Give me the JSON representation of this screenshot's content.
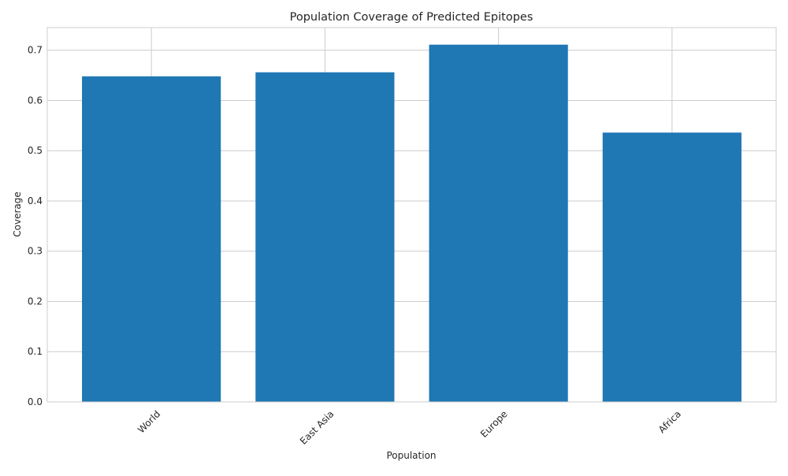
{
  "chart_data": {
    "type": "bar",
    "title": "Population Coverage of Predicted Epitopes",
    "xlabel": "Population",
    "ylabel": "Coverage",
    "categories": [
      "World",
      "East Asia",
      "Europe",
      "Africa"
    ],
    "values": [
      0.648,
      0.656,
      0.711,
      0.536
    ],
    "ylim": [
      0,
      0.745
    ],
    "yticks": [
      "0.0",
      "0.1",
      "0.2",
      "0.3",
      "0.4",
      "0.5",
      "0.6",
      "0.7"
    ],
    "grid": true,
    "legend": "none",
    "colors": {
      "bar": "#1f77b4",
      "grid": "#cccccc",
      "frame": "#cccccc"
    }
  }
}
